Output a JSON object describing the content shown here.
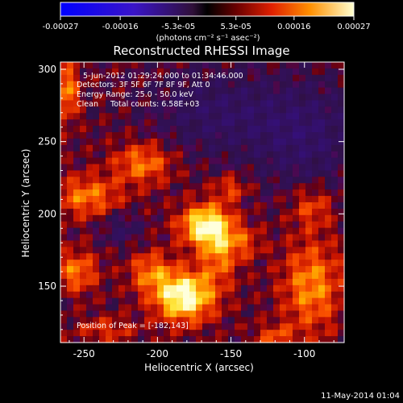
{
  "colorbar": {
    "ticks": [
      "-0.00027",
      "-0.00016",
      "-5.3e-05",
      "5.3e-05",
      "0.00016",
      "0.00027"
    ],
    "tick_values": [
      -0.00027,
      -0.00016,
      -5.3e-05,
      5.3e-05,
      0.00016,
      0.00027
    ],
    "units_label": "(photons cm⁻² s⁻¹ asec⁻²)",
    "range": [
      -0.00027,
      0.00027
    ]
  },
  "chart_data": {
    "type": "heatmap",
    "title": "Reconstructed RHESSI Image",
    "xlabel": "Heliocentric X (arcsec)",
    "ylabel": "Heliocentric Y (arcsec)",
    "xlim": [
      -266,
      -73
    ],
    "ylim": [
      111,
      305
    ],
    "xticks": [
      -250,
      -200,
      -150,
      -100
    ],
    "yticks": [
      150,
      200,
      250,
      300
    ],
    "annotations": [
      "5-Jun-2012 01:29:24.000 to 01:34:46.000",
      "Detectors: 3F 5F 6F 7F 8F 9F, Att 0",
      "Energy Range: 25.0 - 50.0 keV",
      "Clean     Total counts: 6.58E+03"
    ],
    "peak_label": "Position of Peak = [-182,143]",
    "peak": [
      -182,
      143
    ],
    "sources": [
      {
        "x": -182,
        "y": 143,
        "sx": 14,
        "sy": 12,
        "amp": 1.0
      },
      {
        "x": -168,
        "y": 192,
        "sx": 12,
        "sy": 10,
        "amp": 0.85
      },
      {
        "x": -158,
        "y": 175,
        "sx": 9,
        "sy": 16,
        "amp": 0.5
      },
      {
        "x": -205,
        "y": 160,
        "sx": 10,
        "sy": 10,
        "amp": 0.45
      },
      {
        "x": -248,
        "y": 212,
        "sx": 16,
        "sy": 10,
        "amp": 0.5
      },
      {
        "x": -210,
        "y": 235,
        "sx": 14,
        "sy": 10,
        "amp": 0.5
      },
      {
        "x": -262,
        "y": 285,
        "sx": 6,
        "sy": 14,
        "amp": 0.55
      },
      {
        "x": -255,
        "y": 160,
        "sx": 10,
        "sy": 10,
        "amp": 0.5
      },
      {
        "x": -95,
        "y": 150,
        "sx": 14,
        "sy": 22,
        "amp": 0.55
      },
      {
        "x": -95,
        "y": 205,
        "sx": 10,
        "sy": 10,
        "amp": 0.35
      },
      {
        "x": -150,
        "y": 218,
        "sx": 8,
        "sy": 6,
        "amp": 0.35
      },
      {
        "x": -120,
        "y": 115,
        "sx": 10,
        "sy": 6,
        "amp": 0.35
      },
      {
        "x": -235,
        "y": 120,
        "sx": 14,
        "sy": 6,
        "amp": 0.3
      },
      {
        "x": -140,
        "y": 180,
        "sx": 8,
        "sy": 8,
        "amp": 0.3
      },
      {
        "x": -225,
        "y": 190,
        "sx": 10,
        "sy": 8,
        "amp": -0.25
      },
      {
        "x": -100,
        "y": 255,
        "sx": 25,
        "sy": 25,
        "amp": -0.35
      },
      {
        "x": -160,
        "y": 270,
        "sx": 30,
        "sy": 20,
        "amp": -0.3
      }
    ]
  },
  "footer": {
    "timestamp": "11-May-2014 01:04"
  }
}
